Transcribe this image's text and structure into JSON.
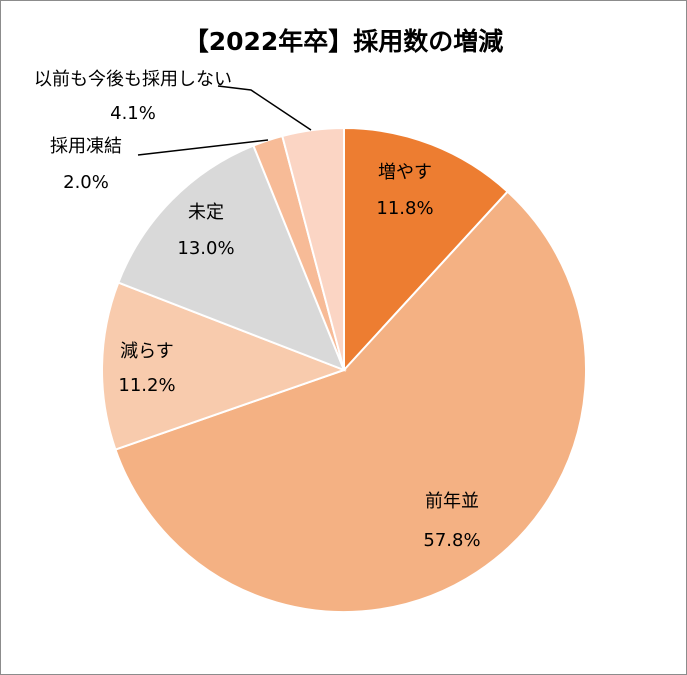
{
  "chart_data": {
    "type": "pie",
    "title": "【2022年卒】採用数の増減",
    "start_angle_deg": 0,
    "direction": "clockwise",
    "slices": [
      {
        "label": "増やす",
        "value": 11.8,
        "value_label": "11.8%",
        "color": "#ed7d31"
      },
      {
        "label": "前年並",
        "value": 57.8,
        "value_label": "57.8%",
        "color": "#f4b183"
      },
      {
        "label": "減らす",
        "value": 11.2,
        "value_label": "11.2%",
        "color": "#f8cbad"
      },
      {
        "label": "未定",
        "value": 13.0,
        "value_label": "13.0%",
        "color": "#d9d9d9"
      },
      {
        "label": "採用凍結",
        "value": 2.0,
        "value_label": "2.0%",
        "color": "#f7bb97"
      },
      {
        "label": "以前も今後も採用しない",
        "value": 4.1,
        "value_label": "4.1%",
        "color": "#fbd5c4"
      }
    ]
  }
}
